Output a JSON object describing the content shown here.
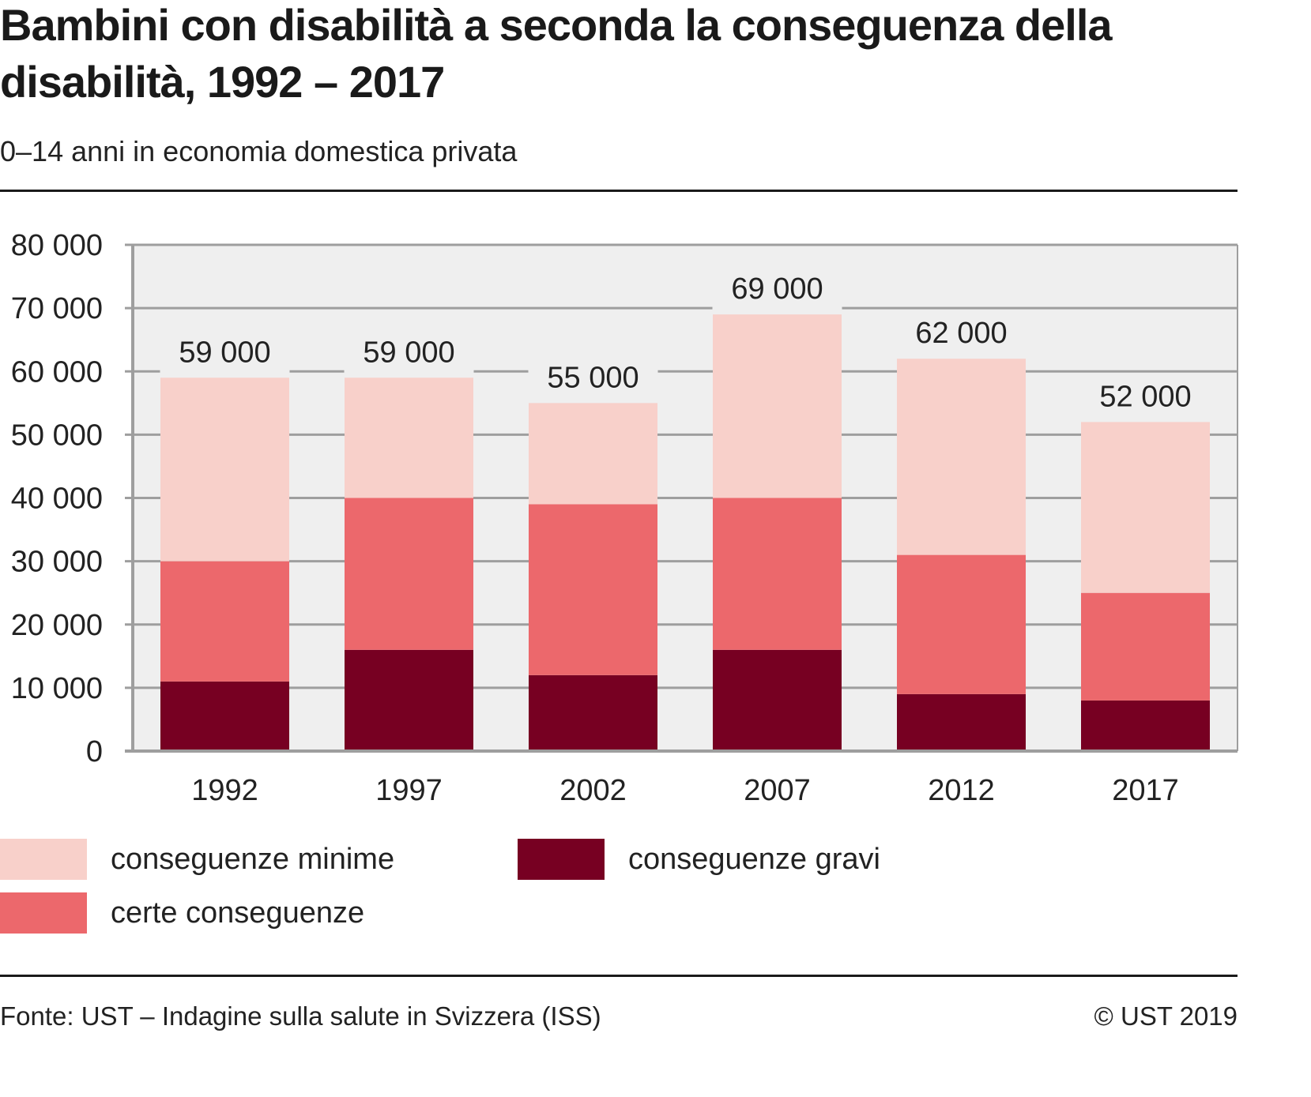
{
  "header": {
    "title": "Bambini con disabilità a seconda la conseguenza della disabilità, 1992 – 2017",
    "subtitle": "0–14 anni in economia domestica privata"
  },
  "footer": {
    "source": "Fonte: UST – Indagine sulla salute in Svizzera (ISS)",
    "copyright": "© UST 2019"
  },
  "colors": {
    "minime": "#f8d0ca",
    "certe": "#ec686c",
    "gravi": "#770022",
    "plot_bg": "#efefef",
    "grid": "#9e9e9e"
  },
  "chart_data": {
    "type": "bar",
    "stacked": true,
    "title": "Bambini con disabilità a seconda la conseguenza della disabilità, 1992 – 2017",
    "subtitle": "0–14 anni in economia domestica privata",
    "xlabel": "",
    "ylabel": "",
    "categories": [
      "1992",
      "1997",
      "2002",
      "2007",
      "2012",
      "2017"
    ],
    "series": [
      {
        "name": "conseguenze gravi",
        "color": "#770022",
        "values": [
          11000,
          16000,
          12000,
          16000,
          9000,
          8000
        ]
      },
      {
        "name": "certe conseguenze",
        "color": "#ec686c",
        "values": [
          19000,
          24000,
          27000,
          24000,
          22000,
          17000
        ]
      },
      {
        "name": "conseguenze minime",
        "color": "#f8d0ca",
        "values": [
          29000,
          19000,
          16000,
          29000,
          31000,
          27000
        ]
      }
    ],
    "totals": [
      59000,
      59000,
      55000,
      69000,
      62000,
      52000
    ],
    "total_labels": [
      "59 000",
      "59 000",
      "55 000",
      "69 000",
      "62 000",
      "52 000"
    ],
    "ylim": [
      0,
      80000
    ],
    "yticks": [
      0,
      10000,
      20000,
      30000,
      40000,
      50000,
      60000,
      70000,
      80000
    ],
    "ytick_labels": [
      "0",
      "10 000",
      "20 000",
      "30 000",
      "40 000",
      "50 000",
      "60 000",
      "70 000",
      "80 000"
    ],
    "grid": true,
    "legend_position": "bottom"
  },
  "legend": [
    {
      "label": "conseguenze minime",
      "color": "#f8d0ca"
    },
    {
      "label": "certe conseguenze",
      "color": "#ec686c"
    },
    {
      "label": "conseguenze gravi",
      "color": "#770022"
    }
  ]
}
